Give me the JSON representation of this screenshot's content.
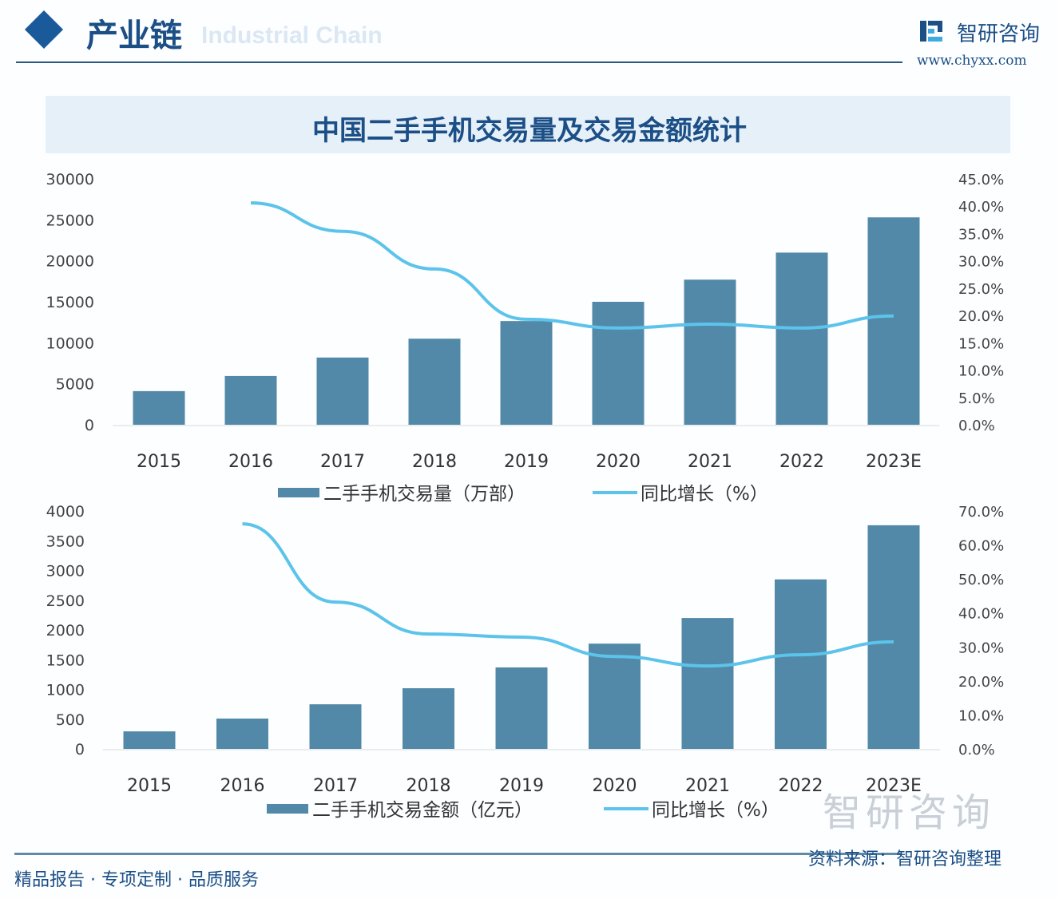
{
  "header": {
    "section": "产业链",
    "section_en": "Industrial Chain",
    "brand": "智研咨询",
    "url": "www.chyxx.com"
  },
  "title": "中国二手手机交易量及交易金额统计",
  "footer": {
    "slogan": "精品报告 · 专项定制 · 品质服务",
    "source": "资料来源：智研咨询整理",
    "watermark": "智研咨询"
  },
  "colors": {
    "bar": "#5289a8",
    "line": "#5cc3ea",
    "title": "#1b4f86"
  },
  "chart_data": [
    {
      "type": "bar+line",
      "categories": [
        "2015",
        "2016",
        "2017",
        "2018",
        "2019",
        "2020",
        "2021",
        "2022",
        "2023E"
      ],
      "series": [
        {
          "name": "二手手机交易量（万部）",
          "type": "bar",
          "axis": "left",
          "values": [
            4100,
            5950,
            8200,
            10500,
            12650,
            15000,
            17700,
            21000,
            25300
          ]
        },
        {
          "name": "同比增长（%）",
          "type": "line",
          "axis": "right",
          "values": [
            null,
            40.6,
            35.4,
            28.5,
            19.3,
            17.7,
            18.4,
            17.7,
            19.9
          ]
        }
      ],
      "yleft": {
        "ticks": [
          "0",
          "5000",
          "10000",
          "15000",
          "20000",
          "25000",
          "30000"
        ],
        "range": [
          0,
          30000
        ]
      },
      "yright": {
        "ticks": [
          "0.0%",
          "5.0%",
          "10.0%",
          "15.0%",
          "20.0%",
          "25.0%",
          "30.0%",
          "35.0%",
          "40.0%",
          "45.0%"
        ],
        "range": [
          0,
          45
        ]
      },
      "legend": "bottom",
      "grid": false
    },
    {
      "type": "bar+line",
      "categories": [
        "2015",
        "2016",
        "2017",
        "2018",
        "2019",
        "2020",
        "2021",
        "2022",
        "2023E"
      ],
      "series": [
        {
          "name": "二手手机交易金额（亿元）",
          "type": "bar",
          "axis": "left",
          "values": [
            295,
            510,
            750,
            1020,
            1370,
            1770,
            2200,
            2850,
            3760
          ]
        },
        {
          "name": "同比增长（%）",
          "type": "line",
          "axis": "right",
          "values": [
            null,
            66.2,
            43.2,
            33.8,
            32.9,
            27.2,
            24.4,
            27.7,
            31.5
          ]
        }
      ],
      "yleft": {
        "ticks": [
          "0",
          "500",
          "1000",
          "1500",
          "2000",
          "2500",
          "3000",
          "3500",
          "4000"
        ],
        "range": [
          0,
          4000
        ]
      },
      "yright": {
        "ticks": [
          "0.0%",
          "10.0%",
          "20.0%",
          "30.0%",
          "40.0%",
          "50.0%",
          "60.0%",
          "70.0%"
        ],
        "range": [
          0,
          70
        ]
      },
      "legend": "bottom",
      "grid": false
    }
  ]
}
